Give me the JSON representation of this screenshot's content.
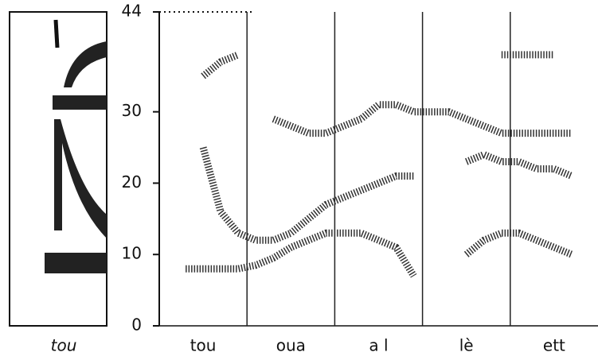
{
  "chart_data": {
    "type": "line",
    "inset_label": "tou",
    "categories": [
      null,
      null,
      "tou",
      null,
      null,
      null,
      null,
      "oua",
      null,
      null,
      null,
      null,
      "a l",
      null,
      null,
      null,
      null,
      "lè",
      null,
      null,
      null,
      null,
      "ett",
      null,
      null
    ],
    "series": [
      {
        "color": "#333333",
        "values": [
          null,
          8,
          8,
          8,
          8,
          8.5,
          9.5,
          11,
          12,
          13,
          13,
          13,
          12,
          11,
          7,
          null,
          null,
          10,
          12,
          13,
          13,
          12,
          11,
          10,
          null
        ]
      },
      {
        "color": "#333333",
        "values": [
          null,
          null,
          25,
          16,
          13,
          12,
          12,
          13,
          15,
          17,
          18,
          19,
          20,
          21,
          21,
          null,
          null,
          23,
          24,
          23,
          23,
          22,
          22,
          21,
          null
        ]
      },
      {
        "color": "#333333",
        "values": [
          null,
          null,
          35,
          37,
          38,
          null,
          29,
          28,
          27,
          27,
          28,
          29,
          31,
          31,
          30,
          30,
          30,
          29,
          28,
          27,
          27,
          27,
          27,
          27,
          null
        ]
      },
      {
        "color": "#333333",
        "values": [
          null,
          null,
          null,
          null,
          null,
          null,
          null,
          null,
          null,
          null,
          null,
          null,
          null,
          null,
          null,
          null,
          null,
          null,
          null,
          38,
          38,
          38,
          38,
          null,
          null
        ]
      }
    ],
    "ylim": [
      0,
      44
    ],
    "yticks": [
      0,
      10,
      20,
      30,
      44
    ]
  }
}
